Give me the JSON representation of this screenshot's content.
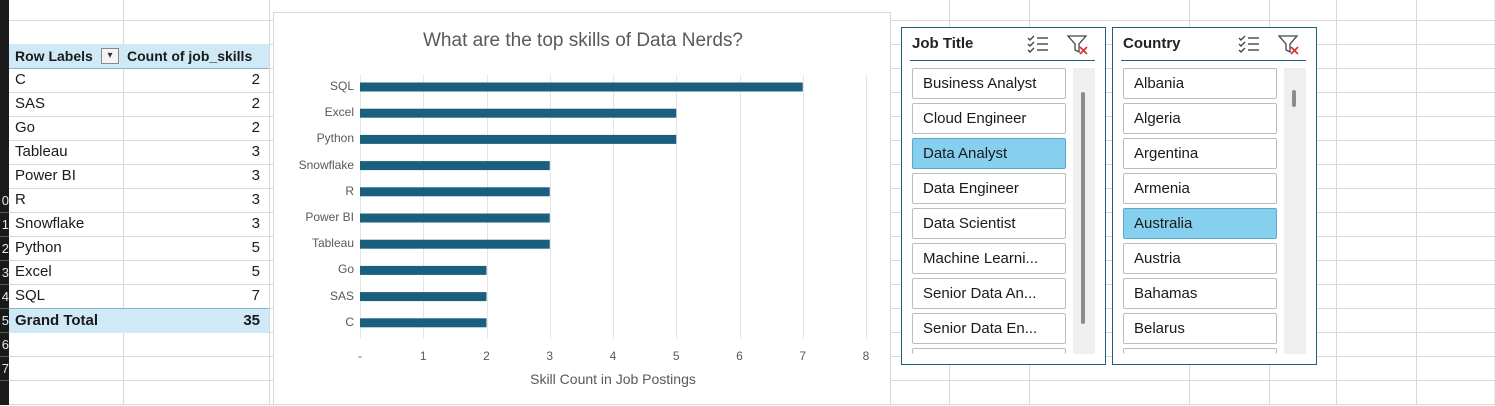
{
  "pivot": {
    "header_label": "Row Labels",
    "header_value": "Count of job_skills",
    "rows": [
      {
        "label": "C",
        "value": "2"
      },
      {
        "label": "SAS",
        "value": "2"
      },
      {
        "label": "Go",
        "value": "2"
      },
      {
        "label": "Tableau",
        "value": "3"
      },
      {
        "label": "Power BI",
        "value": "3"
      },
      {
        "label": "R",
        "value": "3"
      },
      {
        "label": "Snowflake",
        "value": "3"
      },
      {
        "label": "Python",
        "value": "5"
      },
      {
        "label": "Excel",
        "value": "5"
      },
      {
        "label": "SQL",
        "value": "7"
      }
    ],
    "total_label": "Grand Total",
    "total_value": "35"
  },
  "row_numbers": [
    "0",
    "1",
    "2",
    "3",
    "4",
    "5",
    "6",
    "7"
  ],
  "chart_data": {
    "type": "bar",
    "orientation": "horizontal",
    "title": "What are the top skills of Data Nerds?",
    "xlabel": "Skill Count in Job Postings",
    "ylabel": "",
    "categories": [
      "SQL",
      "Excel",
      "Python",
      "Snowflake",
      "R",
      "Power BI",
      "Tableau",
      "Go",
      "SAS",
      "C"
    ],
    "values": [
      7,
      5,
      5,
      3,
      3,
      3,
      3,
      2,
      2,
      2
    ],
    "xlim": [
      0,
      8
    ],
    "x_ticks": [
      "-",
      "1",
      "2",
      "3",
      "4",
      "5",
      "6",
      "7",
      "8"
    ],
    "bar_color": "#1b5f7f",
    "grid": true
  },
  "slicers": {
    "job_title": {
      "title": "Job Title",
      "items": [
        {
          "label": "Business Analyst",
          "selected": false
        },
        {
          "label": "Cloud Engineer",
          "selected": false
        },
        {
          "label": "Data Analyst",
          "selected": true
        },
        {
          "label": "Data Engineer",
          "selected": false
        },
        {
          "label": "Data Scientist",
          "selected": false
        },
        {
          "label": "Machine Learni...",
          "selected": false
        },
        {
          "label": "Senior Data An...",
          "selected": false
        },
        {
          "label": "Senior Data En...",
          "selected": false
        }
      ]
    },
    "country": {
      "title": "Country",
      "items": [
        {
          "label": "Albania",
          "selected": false
        },
        {
          "label": "Algeria",
          "selected": false
        },
        {
          "label": "Argentina",
          "selected": false
        },
        {
          "label": "Armenia",
          "selected": false
        },
        {
          "label": "Australia",
          "selected": true
        },
        {
          "label": "Austria",
          "selected": false
        },
        {
          "label": "Bahamas",
          "selected": false
        },
        {
          "label": "Belarus",
          "selected": false
        }
      ]
    }
  },
  "colors": {
    "selected_item": "#86cfee",
    "pivot_header": "#cfe9f6",
    "slicer_border": "#1f5f7a"
  }
}
